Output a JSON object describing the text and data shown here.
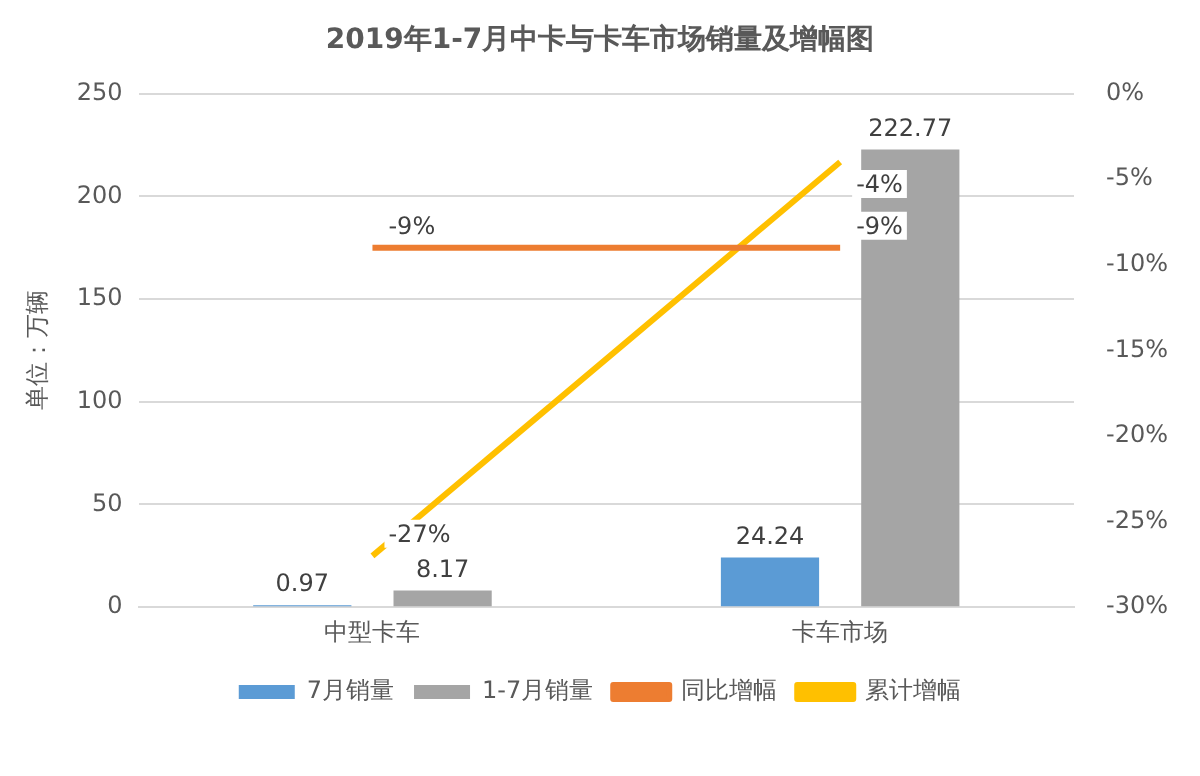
{
  "chart_data": {
    "type": "bar",
    "title": "2019年1-7月中卡与卡车市场销量及增幅图",
    "ylabel": "单位：万辆",
    "categories": [
      "中型卡车",
      "卡车市场"
    ],
    "series": [
      {
        "name": "7月销量",
        "color": "#5b9bd5",
        "values": [
          0.97,
          24.24
        ]
      },
      {
        "name": "1-7月销量",
        "color": "#a5a5a5",
        "values": [
          8.17,
          222.77
        ]
      },
      {
        "name": "同比增幅",
        "type": "line",
        "axis": "y2",
        "color": "#ed7d31",
        "values": [
          -9,
          -9
        ],
        "value_labels": [
          "-9%",
          "-9%"
        ]
      },
      {
        "name": "累计增幅",
        "type": "line",
        "axis": "y2",
        "color": "#ffc000",
        "values": [
          -27,
          -4
        ],
        "value_labels": [
          "-27%",
          "-4%"
        ]
      }
    ],
    "ylim": [
      0,
      250
    ],
    "yticks": [
      0,
      50,
      100,
      150,
      200,
      250
    ],
    "y2lim": [
      -30,
      0
    ],
    "y2ticks": [
      {
        "value": -30,
        "label": "-30%"
      },
      {
        "value": -25,
        "label": "-25%"
      },
      {
        "value": -20,
        "label": "-20%"
      },
      {
        "value": -15,
        "label": "-15%"
      },
      {
        "value": -10,
        "label": "-10%"
      },
      {
        "value": -5,
        "label": "-5%"
      },
      {
        "value": 0,
        "label": "0%"
      }
    ],
    "data_labels": true,
    "grid": "y",
    "legend": "bottom",
    "marker": "none",
    "line_style": "solid"
  }
}
